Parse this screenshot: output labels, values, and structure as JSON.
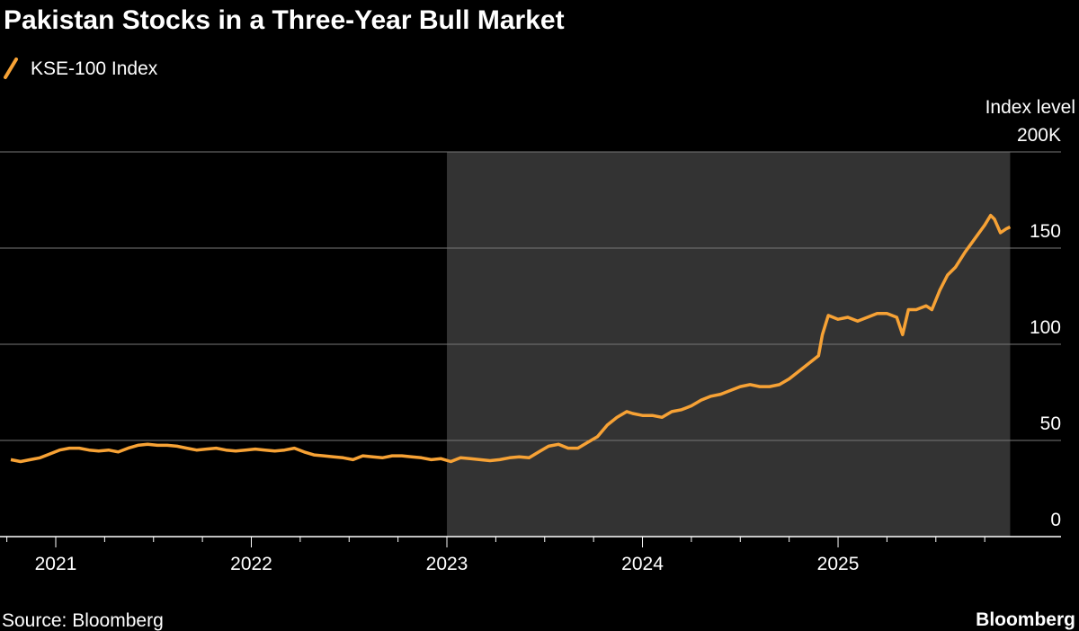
{
  "chart_data": {
    "type": "line",
    "title": "Pakistan Stocks in a Three-Year Bull Market",
    "y_label": "Index level",
    "source": "Source: Bloomberg",
    "brand": "Bloomberg",
    "x": [
      2020.77,
      2020.82,
      2020.87,
      2020.92,
      2020.97,
      2021.02,
      2021.07,
      2021.12,
      2021.17,
      2021.22,
      2021.27,
      2021.32,
      2021.37,
      2021.42,
      2021.47,
      2021.52,
      2021.57,
      2021.62,
      2021.67,
      2021.72,
      2021.77,
      2021.82,
      2021.87,
      2021.92,
      2021.97,
      2022.02,
      2022.07,
      2022.12,
      2022.17,
      2022.22,
      2022.27,
      2022.32,
      2022.37,
      2022.42,
      2022.47,
      2022.52,
      2022.57,
      2022.62,
      2022.67,
      2022.72,
      2022.77,
      2022.82,
      2022.87,
      2022.92,
      2022.97,
      2023.02,
      2023.07,
      2023.12,
      2023.17,
      2023.22,
      2023.27,
      2023.32,
      2023.37,
      2023.42,
      2023.47,
      2023.52,
      2023.57,
      2023.62,
      2023.67,
      2023.72,
      2023.77,
      2023.82,
      2023.87,
      2023.92,
      2023.95,
      2024.0,
      2024.05,
      2024.1,
      2024.15,
      2024.2,
      2024.25,
      2024.3,
      2024.35,
      2024.4,
      2024.45,
      2024.5,
      2024.55,
      2024.6,
      2024.65,
      2024.7,
      2024.75,
      2024.8,
      2024.85,
      2024.9,
      2024.92,
      2024.95,
      2025.0,
      2025.05,
      2025.1,
      2025.15,
      2025.2,
      2025.25,
      2025.3,
      2025.33,
      2025.36,
      2025.4,
      2025.45,
      2025.48,
      2025.52,
      2025.56,
      2025.6,
      2025.65,
      2025.7,
      2025.75,
      2025.78,
      2025.8,
      2025.83,
      2025.86,
      2025.88
    ],
    "series": [
      {
        "name": "KSE-100 Index",
        "color": "#f7a235",
        "values": [
          40,
          39,
          40,
          41,
          43,
          45,
          46,
          46,
          45,
          44.5,
          45,
          44,
          46,
          47.5,
          48,
          47.5,
          47.5,
          47,
          46,
          45,
          45.5,
          46,
          45,
          44.5,
          45,
          45.5,
          45,
          44.5,
          45,
          46,
          44,
          42.5,
          42,
          41.5,
          41,
          40,
          42,
          41.5,
          41,
          42,
          42,
          41.5,
          41,
          40,
          40.5,
          39,
          41,
          40.5,
          40,
          39.5,
          40,
          41,
          41.5,
          41,
          44,
          47,
          48,
          46,
          46,
          49,
          52,
          58,
          62,
          65,
          64,
          63,
          63,
          62,
          65,
          66,
          68,
          71,
          73,
          74,
          76,
          78,
          79,
          78,
          78,
          79,
          82,
          86,
          90,
          94,
          105,
          115,
          113,
          114,
          112,
          114,
          116,
          116,
          114,
          105,
          118,
          118,
          120,
          118,
          128,
          136,
          140,
          148,
          155,
          162,
          167,
          165,
          158,
          160,
          161
        ]
      }
    ],
    "xlim": [
      2020.715,
      2026.14
    ],
    "xticks": [
      2021,
      2022,
      2023,
      2024,
      2025
    ],
    "xminorticks": [
      2020.75,
      2021.25,
      2021.5,
      2021.75,
      2022.25,
      2022.5,
      2022.75,
      2023.25,
      2023.5,
      2023.75,
      2024.25,
      2024.5,
      2024.75,
      2025.25,
      2025.5,
      2025.75
    ],
    "ylim": [
      0,
      200
    ],
    "yticks": [
      0,
      50,
      100,
      150,
      {
        "value": 200,
        "label": "200K"
      }
    ],
    "grid": true,
    "shade": {
      "xlim": [
        2023,
        2025.88
      ],
      "color": "#333333"
    }
  }
}
